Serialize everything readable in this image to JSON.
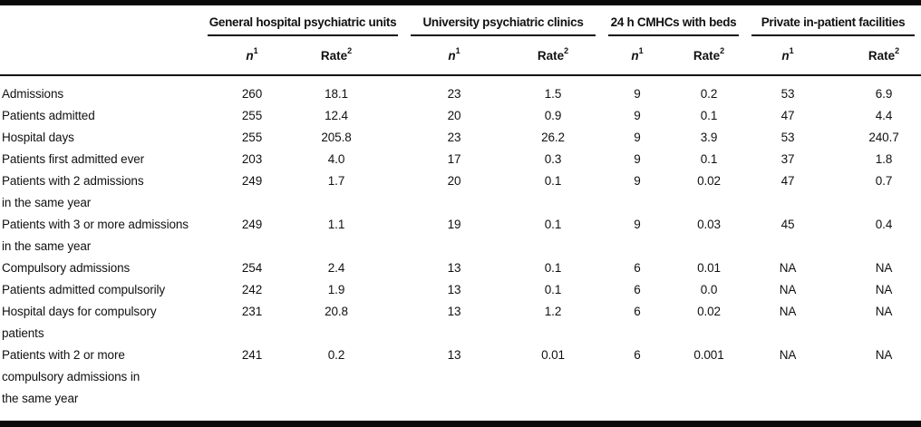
{
  "table": {
    "groups": [
      {
        "label": "General hospital psychiatric units",
        "columns": [
          {
            "label": "n",
            "sup": "1"
          },
          {
            "label": "Rate",
            "sup": "2"
          }
        ]
      },
      {
        "label": "University psychiatric clinics",
        "columns": [
          {
            "label": "n",
            "sup": "1"
          },
          {
            "label": "Rate",
            "sup": "2"
          }
        ]
      },
      {
        "label": "24 h CMHCs with beds",
        "columns": [
          {
            "label": "n",
            "sup": "1"
          },
          {
            "label": "Rate",
            "sup": "2"
          }
        ]
      },
      {
        "label": "Private in-patient facilities",
        "columns": [
          {
            "label": "n",
            "sup": "1"
          },
          {
            "label": "Rate",
            "sup": "2"
          }
        ]
      }
    ],
    "rows": [
      {
        "label": "Admissions",
        "values": [
          "260",
          "18.1",
          "23",
          "1.5",
          "9",
          "0.2",
          "53",
          "6.9"
        ]
      },
      {
        "label": "Patients admitted",
        "values": [
          "255",
          "12.4",
          "20",
          "0.9",
          "9",
          "0.1",
          "47",
          "4.4"
        ]
      },
      {
        "label": "Hospital days",
        "values": [
          "255",
          "205.8",
          "23",
          "26.2",
          "9",
          "3.9",
          "53",
          "240.7"
        ]
      },
      {
        "label": "Patients first admitted ever",
        "values": [
          "203",
          "4.0",
          "17",
          "0.3",
          "9",
          "0.1",
          "37",
          "1.8"
        ]
      },
      {
        "label": "Patients with 2 admissions\nin the same year",
        "values": [
          "249",
          "1.7",
          "20",
          "0.1",
          "9",
          "0.02",
          "47",
          "0.7"
        ]
      },
      {
        "label": "Patients with 3 or more admissions\nin the same year",
        "values": [
          "249",
          "1.1",
          "19",
          "0.1",
          "9",
          "0.03",
          "45",
          "0.4"
        ]
      },
      {
        "label": "Compulsory admissions",
        "values": [
          "254",
          "2.4",
          "13",
          "0.1",
          "6",
          "0.01",
          "NA",
          "NA"
        ]
      },
      {
        "label": "Patients admitted compulsorily",
        "values": [
          "242",
          "1.9",
          "13",
          "0.1",
          "6",
          "0.0",
          "NA",
          "NA"
        ]
      },
      {
        "label": "Hospital days for compulsory\npatients",
        "values": [
          "231",
          "20.8",
          "13",
          "1.2",
          "6",
          "0.02",
          "NA",
          "NA"
        ]
      },
      {
        "label": "Patients with 2 or more\ncompulsory admissions in\nthe same year",
        "values": [
          "241",
          "0.2",
          "13",
          "0.01",
          "6",
          "0.001",
          "NA",
          "NA"
        ]
      }
    ]
  },
  "colors": {
    "background": "#ffffff",
    "text": "#111111",
    "rule": "#0a0a0a"
  }
}
